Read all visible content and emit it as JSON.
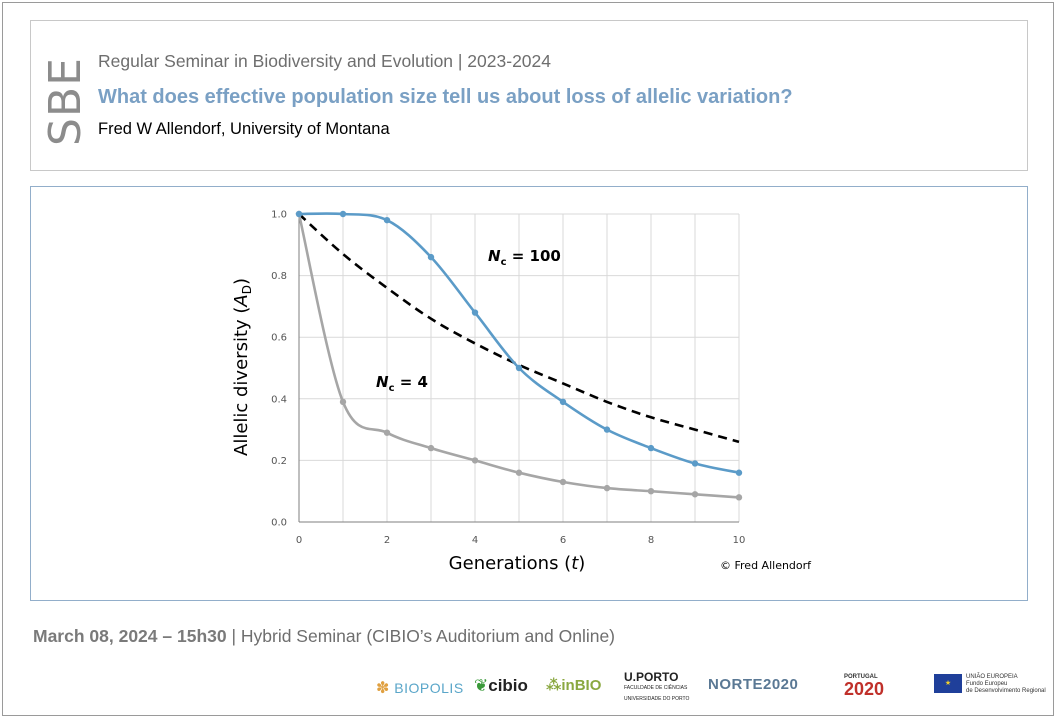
{
  "header": {
    "logo_text": "SBE",
    "seminar_line": "Regular Seminar in Biodiversity and Evolution | 2023-2024",
    "title": "What does effective population size tell us about loss of allelic variation?",
    "speaker": "Fred W Allendorf, University of Montana"
  },
  "chart_data": {
    "type": "line",
    "xlabel": "Generations (t)",
    "ylabel": "Allelic diversity (A_D)",
    "xlim": [
      0,
      10
    ],
    "ylim": [
      0,
      1
    ],
    "x_ticks": [
      "0",
      "2",
      "4",
      "6",
      "8",
      "10"
    ],
    "y_ticks": [
      "0.0",
      "0.2",
      "0.4",
      "0.6",
      "0.8",
      "1.0"
    ],
    "grid": "vertical and horizontal",
    "copyright": "© Fred Allendorf",
    "series": [
      {
        "name": "Nc = 100",
        "label_main": "N",
        "label_sub": "c",
        "label_rest": " = 100",
        "color": "#5b9bc8",
        "style": "solid-markers",
        "x": [
          0,
          1,
          2,
          3,
          4,
          5,
          6,
          7,
          8,
          9,
          10
        ],
        "y": [
          1.0,
          1.0,
          0.98,
          0.86,
          0.68,
          0.5,
          0.39,
          0.3,
          0.24,
          0.19,
          0.16
        ]
      },
      {
        "name": "Nc = 4",
        "label_main": "N",
        "label_sub": "c",
        "label_rest": " = 4",
        "color": "#a6a6a6",
        "style": "solid-markers",
        "x": [
          0,
          1,
          2,
          3,
          4,
          5,
          6,
          7,
          8,
          9,
          10
        ],
        "y": [
          1.0,
          0.39,
          0.29,
          0.24,
          0.2,
          0.16,
          0.13,
          0.11,
          0.1,
          0.09,
          0.08
        ]
      },
      {
        "name": "",
        "color": "#000000",
        "style": "dashed",
        "x": [
          0,
          1,
          2,
          3,
          4,
          5,
          6,
          7,
          8,
          9,
          10
        ],
        "y": [
          1.0,
          0.87,
          0.76,
          0.66,
          0.58,
          0.51,
          0.45,
          0.39,
          0.34,
          0.3,
          0.26
        ]
      }
    ]
  },
  "footer": {
    "date_time": "March 08, 2024 – 15h30",
    "description": " | Hybrid Seminar (CIBIO’s Auditorium and Online)"
  },
  "logos": {
    "biopolis": "BIOPOLIS",
    "cibio": "cibio",
    "inbio": "inBIO",
    "uporto_1": "U.PORTO",
    "uporto_2": "FACULDADE DE CIÊNCIAS",
    "uporto_3": "UNIVERSIDADE DO PORTO",
    "norte": "NORTE2020",
    "portugal_1": "PORTUGAL",
    "portugal_2": "2020",
    "eu_1": "UNIÃO EUROPEIA",
    "eu_2": "Fundo Europeu",
    "eu_3": "de Desenvolvimento Regional"
  }
}
